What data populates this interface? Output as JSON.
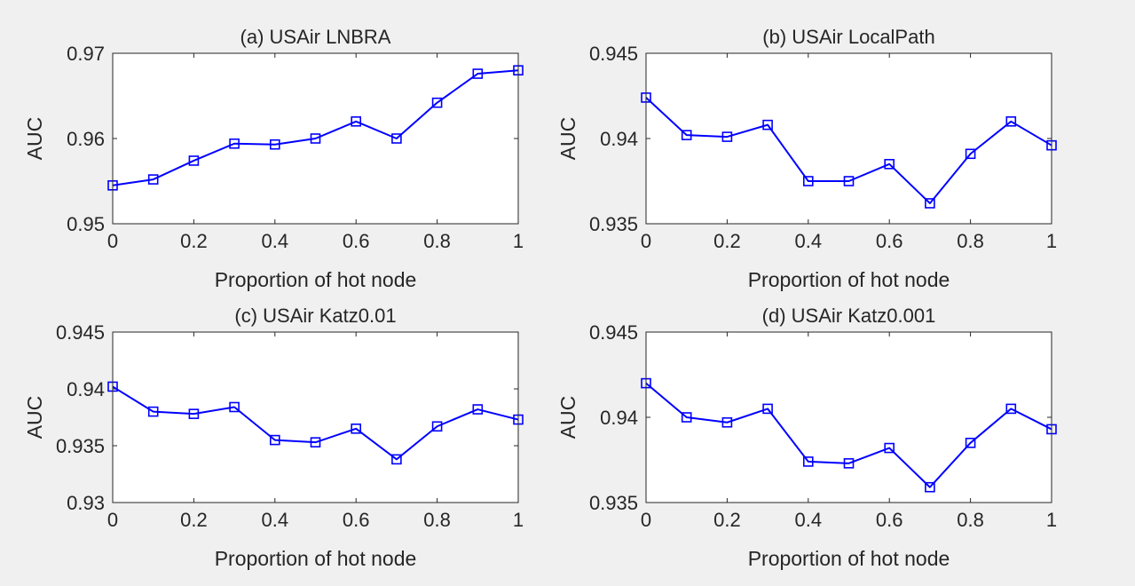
{
  "chart_data": [
    {
      "type": "line",
      "title": "(a) USAir LNBRA",
      "xlabel": "Proportion of hot node",
      "ylabel": "AUC",
      "xlim": [
        0,
        1
      ],
      "ylim": [
        0.95,
        0.97
      ],
      "xticks": [
        0,
        0.2,
        0.4,
        0.6,
        0.8,
        1
      ],
      "xtick_labels": [
        "0",
        "0.2",
        "0.4",
        "0.6",
        "0.8",
        "1"
      ],
      "yticks": [
        0.95,
        0.96,
        0.97
      ],
      "ytick_labels": [
        "0.95",
        "0.96",
        "0.97"
      ],
      "grid": false,
      "series": [
        {
          "marker": "square",
          "color": "#0000ff",
          "x": [
            0,
            0.1,
            0.2,
            0.3,
            0.4,
            0.5,
            0.6,
            0.7,
            0.8,
            0.9,
            1.0
          ],
          "y": [
            0.9545,
            0.9552,
            0.9574,
            0.9594,
            0.9593,
            0.96,
            0.962,
            0.96,
            0.9642,
            0.9676,
            0.968
          ]
        }
      ]
    },
    {
      "type": "line",
      "title": "(b) USAir LocalPath",
      "xlabel": "Proportion of hot node",
      "ylabel": "AUC",
      "xlim": [
        0,
        1
      ],
      "ylim": [
        0.935,
        0.945
      ],
      "xticks": [
        0,
        0.2,
        0.4,
        0.6,
        0.8,
        1
      ],
      "xtick_labels": [
        "0",
        "0.2",
        "0.4",
        "0.6",
        "0.8",
        "1"
      ],
      "yticks": [
        0.935,
        0.94,
        0.945
      ],
      "ytick_labels": [
        "0.935",
        "0.94",
        "0.945"
      ],
      "grid": false,
      "series": [
        {
          "marker": "square",
          "color": "#0000ff",
          "x": [
            0,
            0.1,
            0.2,
            0.3,
            0.4,
            0.5,
            0.6,
            0.7,
            0.8,
            0.9,
            1.0
          ],
          "y": [
            0.9424,
            0.9402,
            0.9401,
            0.9408,
            0.9375,
            0.9375,
            0.9385,
            0.9362,
            0.9391,
            0.941,
            0.9396
          ]
        }
      ]
    },
    {
      "type": "line",
      "title": "(c) USAir Katz0.01",
      "xlabel": "Proportion of hot node",
      "ylabel": "AUC",
      "xlim": [
        0,
        1
      ],
      "ylim": [
        0.93,
        0.945
      ],
      "xticks": [
        0,
        0.2,
        0.4,
        0.6,
        0.8,
        1
      ],
      "xtick_labels": [
        "0",
        "0.2",
        "0.4",
        "0.6",
        "0.8",
        "1"
      ],
      "yticks": [
        0.93,
        0.935,
        0.94,
        0.945
      ],
      "ytick_labels": [
        "0.93",
        "0.935",
        "0.94",
        "0.945"
      ],
      "grid": false,
      "series": [
        {
          "marker": "square",
          "color": "#0000ff",
          "x": [
            0,
            0.1,
            0.2,
            0.3,
            0.4,
            0.5,
            0.6,
            0.7,
            0.8,
            0.9,
            1.0
          ],
          "y": [
            0.9402,
            0.938,
            0.9378,
            0.9384,
            0.9355,
            0.9353,
            0.9365,
            0.9338,
            0.9367,
            0.9382,
            0.9373
          ]
        }
      ]
    },
    {
      "type": "line",
      "title": "(d) USAir Katz0.001",
      "xlabel": "Proportion of hot node",
      "ylabel": "AUC",
      "xlim": [
        0,
        1
      ],
      "ylim": [
        0.935,
        0.945
      ],
      "xticks": [
        0,
        0.2,
        0.4,
        0.6,
        0.8,
        1
      ],
      "xtick_labels": [
        "0",
        "0.2",
        "0.4",
        "0.6",
        "0.8",
        "1"
      ],
      "yticks": [
        0.935,
        0.94,
        0.945
      ],
      "ytick_labels": [
        "0.935",
        "0.94",
        "0.945"
      ],
      "grid": false,
      "series": [
        {
          "marker": "square",
          "color": "#0000ff",
          "x": [
            0,
            0.1,
            0.2,
            0.3,
            0.4,
            0.5,
            0.6,
            0.7,
            0.8,
            0.9,
            1.0
          ],
          "y": [
            0.942,
            0.94,
            0.9397,
            0.9405,
            0.9374,
            0.9373,
            0.9382,
            0.9359,
            0.9385,
            0.9405,
            0.9393
          ]
        }
      ]
    }
  ]
}
